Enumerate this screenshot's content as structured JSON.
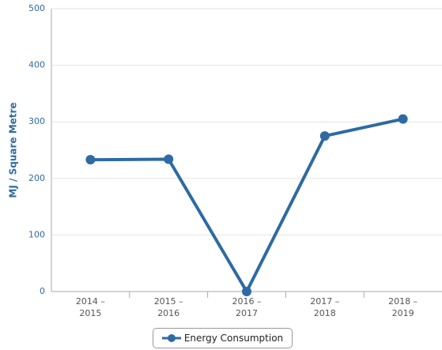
{
  "chart_data": {
    "type": "line",
    "y_axis_label": "MJ / Square Metre",
    "categories": [
      "2014 – 2015",
      "2015 – 2016",
      "2016 – 2017",
      "2017 – 2018",
      "2018 – 2019"
    ],
    "series": [
      {
        "name": "Energy Consumption",
        "color": "#2e6aa3",
        "values": [
          233,
          234,
          0,
          275,
          305
        ]
      }
    ],
    "ylim": [
      0,
      500
    ],
    "yticks": [
      0,
      100,
      200,
      300,
      400,
      500
    ],
    "grid": true,
    "legend": "bottom"
  }
}
